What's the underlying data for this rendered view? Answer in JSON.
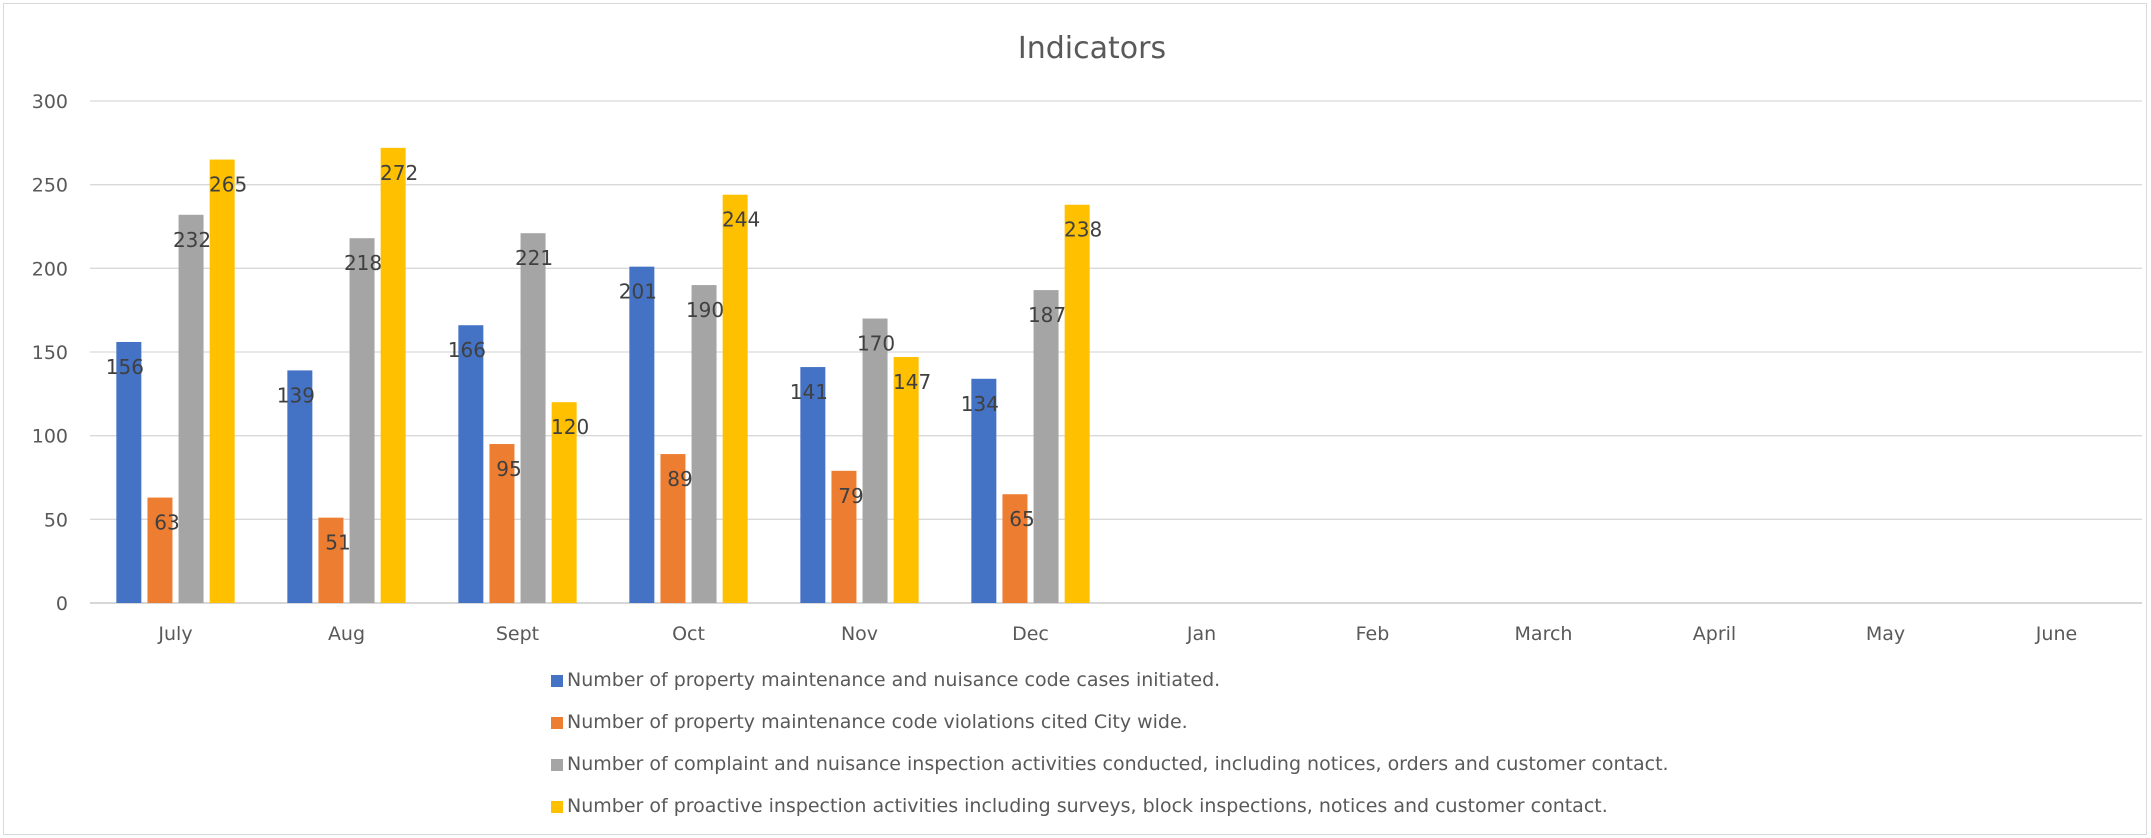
{
  "chart_data": {
    "type": "bar",
    "title": "Indicators",
    "xlabel": "",
    "ylabel": "",
    "ylim": [
      0,
      300
    ],
    "yticks": [
      0,
      50,
      100,
      150,
      200,
      250,
      300
    ],
    "grid": true,
    "legend_position": "bottom",
    "categories": [
      "July",
      "Aug",
      "Sept",
      "Oct",
      "Nov",
      "Dec",
      "Jan",
      "Feb",
      "March",
      "April",
      "May",
      "June"
    ],
    "series": [
      {
        "name": "Number of property maintenance and nuisance code cases initiated.",
        "color": "#4472c4",
        "values": [
          156,
          139,
          166,
          201,
          141,
          134,
          null,
          null,
          null,
          null,
          null,
          null
        ]
      },
      {
        "name": "Number of property maintenance code violations cited City wide.",
        "color": "#ed7d31",
        "values": [
          63,
          51,
          95,
          89,
          79,
          65,
          null,
          null,
          null,
          null,
          null,
          null
        ]
      },
      {
        "name": "Number of complaint and nuisance inspection activities conducted, including  notices, orders and customer contact.",
        "color": "#a5a5a5",
        "values": [
          232,
          218,
          221,
          190,
          170,
          187,
          null,
          null,
          null,
          null,
          null,
          null
        ]
      },
      {
        "name": "Number of proactive inspection activities including surveys, block inspections, notices and customer contact.",
        "color": "#ffc000",
        "values": [
          265,
          272,
          120,
          244,
          147,
          238,
          null,
          null,
          null,
          null,
          null,
          null
        ]
      }
    ]
  }
}
